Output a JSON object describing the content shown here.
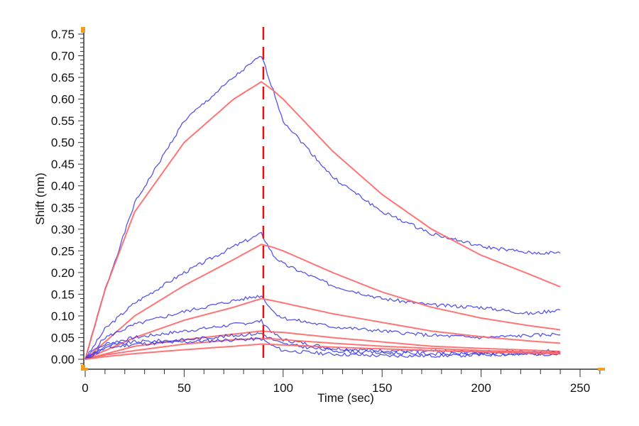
{
  "chart_data": {
    "type": "line",
    "xlabel": "Time (sec)",
    "ylabel": "Shift (nm)",
    "xlim": [
      0,
      262
    ],
    "ylim": [
      -0.02,
      0.76
    ],
    "xticks": [
      "0",
      "50",
      "100",
      "150",
      "200",
      "250"
    ],
    "yticks": [
      "0.00",
      "0.05",
      "0.10",
      "0.15",
      "0.20",
      "0.25",
      "0.30",
      "0.35",
      "0.40",
      "0.45",
      "0.50",
      "0.55",
      "0.60",
      "0.65",
      "0.70",
      "0.75"
    ],
    "grid": false,
    "marker_line_x": 90,
    "colors": {
      "data": "#2a2ae8",
      "fit": "#ff6666",
      "marker": "#e81010",
      "axis": "#333333",
      "corner": "#f0a020"
    },
    "x": [
      0,
      10,
      25,
      50,
      75,
      89,
      95,
      100,
      125,
      150,
      175,
      200,
      225,
      240
    ],
    "series": [
      {
        "kind": "data",
        "values": [
          0,
          0.16,
          0.36,
          0.55,
          0.65,
          0.7,
          0.62,
          0.55,
          0.42,
          0.34,
          0.29,
          0.26,
          0.245,
          0.245
        ]
      },
      {
        "kind": "fit",
        "values": [
          0,
          0.16,
          0.34,
          0.5,
          0.6,
          0.64,
          0.62,
          0.6,
          0.48,
          0.38,
          0.3,
          0.24,
          0.195,
          0.167
        ]
      },
      {
        "kind": "data",
        "values": [
          0,
          0.07,
          0.13,
          0.2,
          0.26,
          0.29,
          0.24,
          0.22,
          0.17,
          0.14,
          0.125,
          0.12,
          0.105,
          0.115
        ]
      },
      {
        "kind": "fit",
        "values": [
          0,
          0.04,
          0.1,
          0.17,
          0.23,
          0.265,
          0.258,
          0.25,
          0.2,
          0.155,
          0.12,
          0.095,
          0.077,
          0.068
        ]
      },
      {
        "kind": "data",
        "values": [
          0,
          0.05,
          0.08,
          0.11,
          0.135,
          0.147,
          0.11,
          0.095,
          0.075,
          0.065,
          0.055,
          0.05,
          0.055,
          0.058
        ]
      },
      {
        "kind": "fit",
        "values": [
          0,
          0.02,
          0.05,
          0.09,
          0.12,
          0.14,
          0.135,
          0.13,
          0.105,
          0.085,
          0.065,
          0.052,
          0.042,
          0.037
        ]
      },
      {
        "kind": "data",
        "values": [
          0,
          0.035,
          0.05,
          0.065,
          0.08,
          0.088,
          0.06,
          0.045,
          0.025,
          0.02,
          0.018,
          0.017,
          0.018,
          0.02
        ]
      },
      {
        "kind": "fit",
        "values": [
          0,
          0.012,
          0.03,
          0.045,
          0.058,
          0.065,
          0.063,
          0.062,
          0.05,
          0.04,
          0.03,
          0.025,
          0.021,
          0.018
        ]
      },
      {
        "kind": "data",
        "values": [
          0,
          0.03,
          0.04,
          0.045,
          0.055,
          0.06,
          0.045,
          0.035,
          0.02,
          0.015,
          0.013,
          0.012,
          0.013,
          0.015
        ]
      },
      {
        "kind": "fit",
        "values": [
          0,
          0.01,
          0.02,
          0.035,
          0.045,
          0.048,
          0.047,
          0.045,
          0.037,
          0.03,
          0.025,
          0.02,
          0.017,
          0.015
        ]
      },
      {
        "kind": "data",
        "values": [
          0,
          0.025,
          0.035,
          0.04,
          0.045,
          0.047,
          0.03,
          0.02,
          0.012,
          0.008,
          0.008,
          0.01,
          0.012,
          0.012
        ]
      },
      {
        "kind": "fit",
        "values": [
          0,
          0.006,
          0.013,
          0.022,
          0.03,
          0.035,
          0.034,
          0.033,
          0.028,
          0.024,
          0.02,
          0.017,
          0.014,
          0.013
        ]
      }
    ]
  }
}
